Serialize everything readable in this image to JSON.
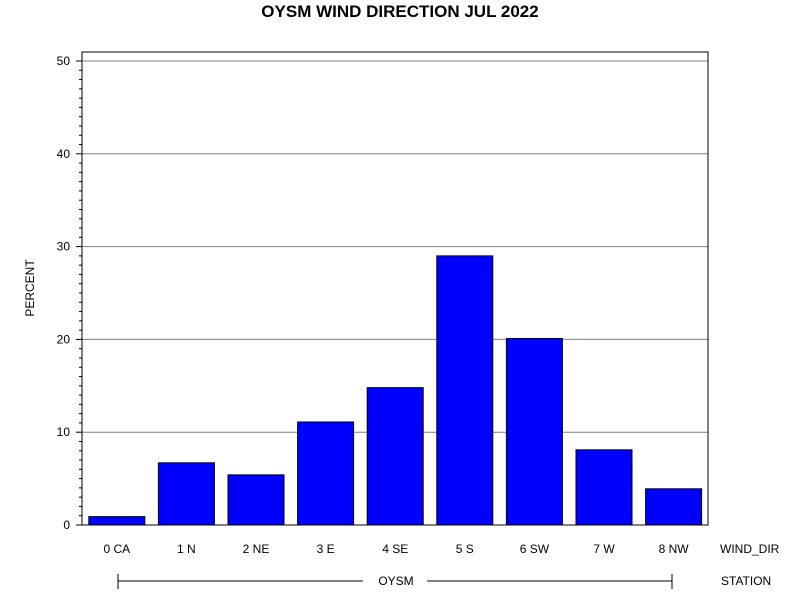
{
  "chart_data": {
    "type": "bar",
    "title": "OYSM WIND DIRECTION JUL 2022",
    "ylabel": "PERCENT",
    "xlabel": "WIND_DIR",
    "group_label": "STATION",
    "group_value": "OYSM",
    "ylim": [
      0,
      50
    ],
    "yticks": [
      0,
      10,
      20,
      30,
      40,
      50
    ],
    "grid": true,
    "categories": [
      "0 CA",
      "1 N",
      "2 NE",
      "3 E",
      "4 SE",
      "5 S",
      "6 SW",
      "7 W",
      "8 NW"
    ],
    "values": [
      0.9,
      6.7,
      5.4,
      11.1,
      14.8,
      29.0,
      20.1,
      8.1,
      3.9
    ],
    "colors": {
      "bar": "#0000ff",
      "grid": "#808080",
      "axis": "#000000"
    }
  }
}
